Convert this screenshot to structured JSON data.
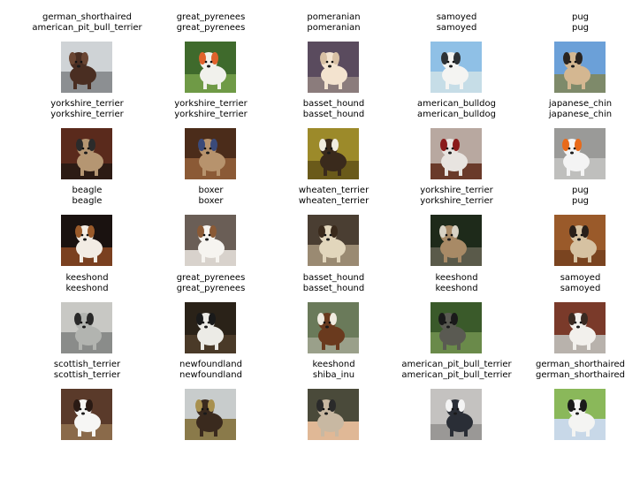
{
  "samples": [
    {
      "line1": "german_shorthaired",
      "line2": "american_pit_bull_terrier",
      "palette": {
        "bg": "#cfd3d6",
        "mid": "#8c8f92",
        "dog": "#4a2e22",
        "accent": "#6b4633"
      }
    },
    {
      "line1": "great_pyrenees",
      "line2": "great_pyrenees",
      "palette": {
        "bg": "#3f6a2c",
        "mid": "#6f9a46",
        "dog": "#f1f1ec",
        "accent": "#e0622c"
      }
    },
    {
      "line1": "pomeranian",
      "line2": "pomeranian",
      "palette": {
        "bg": "#5a4b5e",
        "mid": "#8b7c7c",
        "dog": "#f3e3cf",
        "accent": "#d8c0a4"
      }
    },
    {
      "line1": "samoyed",
      "line2": "samoyed",
      "palette": {
        "bg": "#8fc0e6",
        "mid": "#c6dde7",
        "dog": "#f4f4f2",
        "accent": "#2d3236"
      }
    },
    {
      "line1": "pug",
      "line2": "pug",
      "palette": {
        "bg": "#6ba0d8",
        "mid": "#7e8a6a",
        "dog": "#d4b791",
        "accent": "#2a2420"
      }
    },
    {
      "line1": "yorkshire_terrier",
      "line2": "yorkshire_terrier",
      "palette": {
        "bg": "#5a2a1c",
        "mid": "#2c1b14",
        "dog": "#b59672",
        "accent": "#2b2b2b"
      }
    },
    {
      "line1": "yorkshire_terrier",
      "line2": "yorkshire_terrier",
      "palette": {
        "bg": "#4b2c1a",
        "mid": "#8b5a36",
        "dog": "#b7936d",
        "accent": "#3a4a7a"
      }
    },
    {
      "line1": "basset_hound",
      "line2": "basset_hound",
      "palette": {
        "bg": "#9c8a2a",
        "mid": "#6a5a1a",
        "dog": "#3a2a1c",
        "accent": "#f0ece0"
      }
    },
    {
      "line1": "american_bulldog",
      "line2": "american_bulldog",
      "palette": {
        "bg": "#b8a8a0",
        "mid": "#6a3a2a",
        "dog": "#e8e4e0",
        "accent": "#8a1a1a"
      }
    },
    {
      "line1": "japanese_chin",
      "line2": "japanese_chin",
      "palette": {
        "bg": "#9a9a98",
        "mid": "#bfbfbd",
        "dog": "#f4f4f4",
        "accent": "#e86a1a"
      }
    },
    {
      "line1": "beagle",
      "line2": "beagle",
      "palette": {
        "bg": "#1a1210",
        "mid": "#7a4020",
        "dog": "#f2ece4",
        "accent": "#9a5a2a"
      }
    },
    {
      "line1": "boxer",
      "line2": "boxer",
      "palette": {
        "bg": "#6a5e56",
        "mid": "#d8d2cc",
        "dog": "#f6f4f0",
        "accent": "#8a5a36"
      }
    },
    {
      "line1": "wheaten_terrier",
      "line2": "wheaten_terrier",
      "palette": {
        "bg": "#4a3e32",
        "mid": "#9a8a72",
        "dog": "#e2d6bc",
        "accent": "#3a2a1c"
      }
    },
    {
      "line1": "yorkshire_terrier",
      "line2": "yorkshire_terrier",
      "palette": {
        "bg": "#1e2a1a",
        "mid": "#5a5a4a",
        "dog": "#a88a66",
        "accent": "#d8d2c4"
      }
    },
    {
      "line1": "pug",
      "line2": "pug",
      "palette": {
        "bg": "#9a5a2a",
        "mid": "#7a4420",
        "dog": "#d6c2a2",
        "accent": "#2a201a"
      }
    },
    {
      "line1": "keeshond",
      "line2": "keeshond",
      "palette": {
        "bg": "#c8c8c4",
        "mid": "#8a8c8a",
        "dog": "#b2b4b0",
        "accent": "#2a2a2a"
      }
    },
    {
      "line1": "great_pyrenees",
      "line2": "great_pyrenees",
      "palette": {
        "bg": "#2a2218",
        "mid": "#4a3a28",
        "dog": "#ecebe6",
        "accent": "#1a1a1a"
      }
    },
    {
      "line1": "basset_hound",
      "line2": "basset_hound",
      "palette": {
        "bg": "#6a7a5a",
        "mid": "#9aa08a",
        "dog": "#6a3a1e",
        "accent": "#f0ebe0"
      }
    },
    {
      "line1": "keeshond",
      "line2": "keeshond",
      "palette": {
        "bg": "#3a5a2a",
        "mid": "#6a8a4a",
        "dog": "#5a5a52",
        "accent": "#1a1a1a"
      }
    },
    {
      "line1": "samoyed",
      "line2": "samoyed",
      "palette": {
        "bg": "#7a3a2a",
        "mid": "#b8b2ac",
        "dog": "#f2f0ec",
        "accent": "#3a2a22"
      }
    },
    {
      "line1": "scottish_terrier",
      "line2": "scottish_terrier",
      "palette": {
        "bg": "#5a3a2a",
        "mid": "#8a6a4a",
        "dog": "#f6f6f4",
        "accent": "#2a1a14"
      }
    },
    {
      "line1": "newfoundland",
      "line2": "newfoundland",
      "palette": {
        "bg": "#c8cccc",
        "mid": "#8a7a4a",
        "dog": "#3a2a1e",
        "accent": "#a8904e"
      }
    },
    {
      "line1": "keeshond",
      "line2": "shiba_inu",
      "palette": {
        "bg": "#4a4a3a",
        "mid": "#e0b896",
        "dog": "#c8b8a2",
        "accent": "#2a2a2a"
      }
    },
    {
      "line1": "american_pit_bull_terrier",
      "line2": "american_pit_bull_terrier",
      "palette": {
        "bg": "#c4c2c0",
        "mid": "#9a9896",
        "dog": "#2a2e36",
        "accent": "#f4f4f4"
      }
    },
    {
      "line1": "german_shorthaired",
      "line2": "german_shorthaired",
      "palette": {
        "bg": "#8ab85a",
        "mid": "#c8d8e8",
        "dog": "#f4f4f2",
        "accent": "#1a1a1a"
      }
    }
  ]
}
